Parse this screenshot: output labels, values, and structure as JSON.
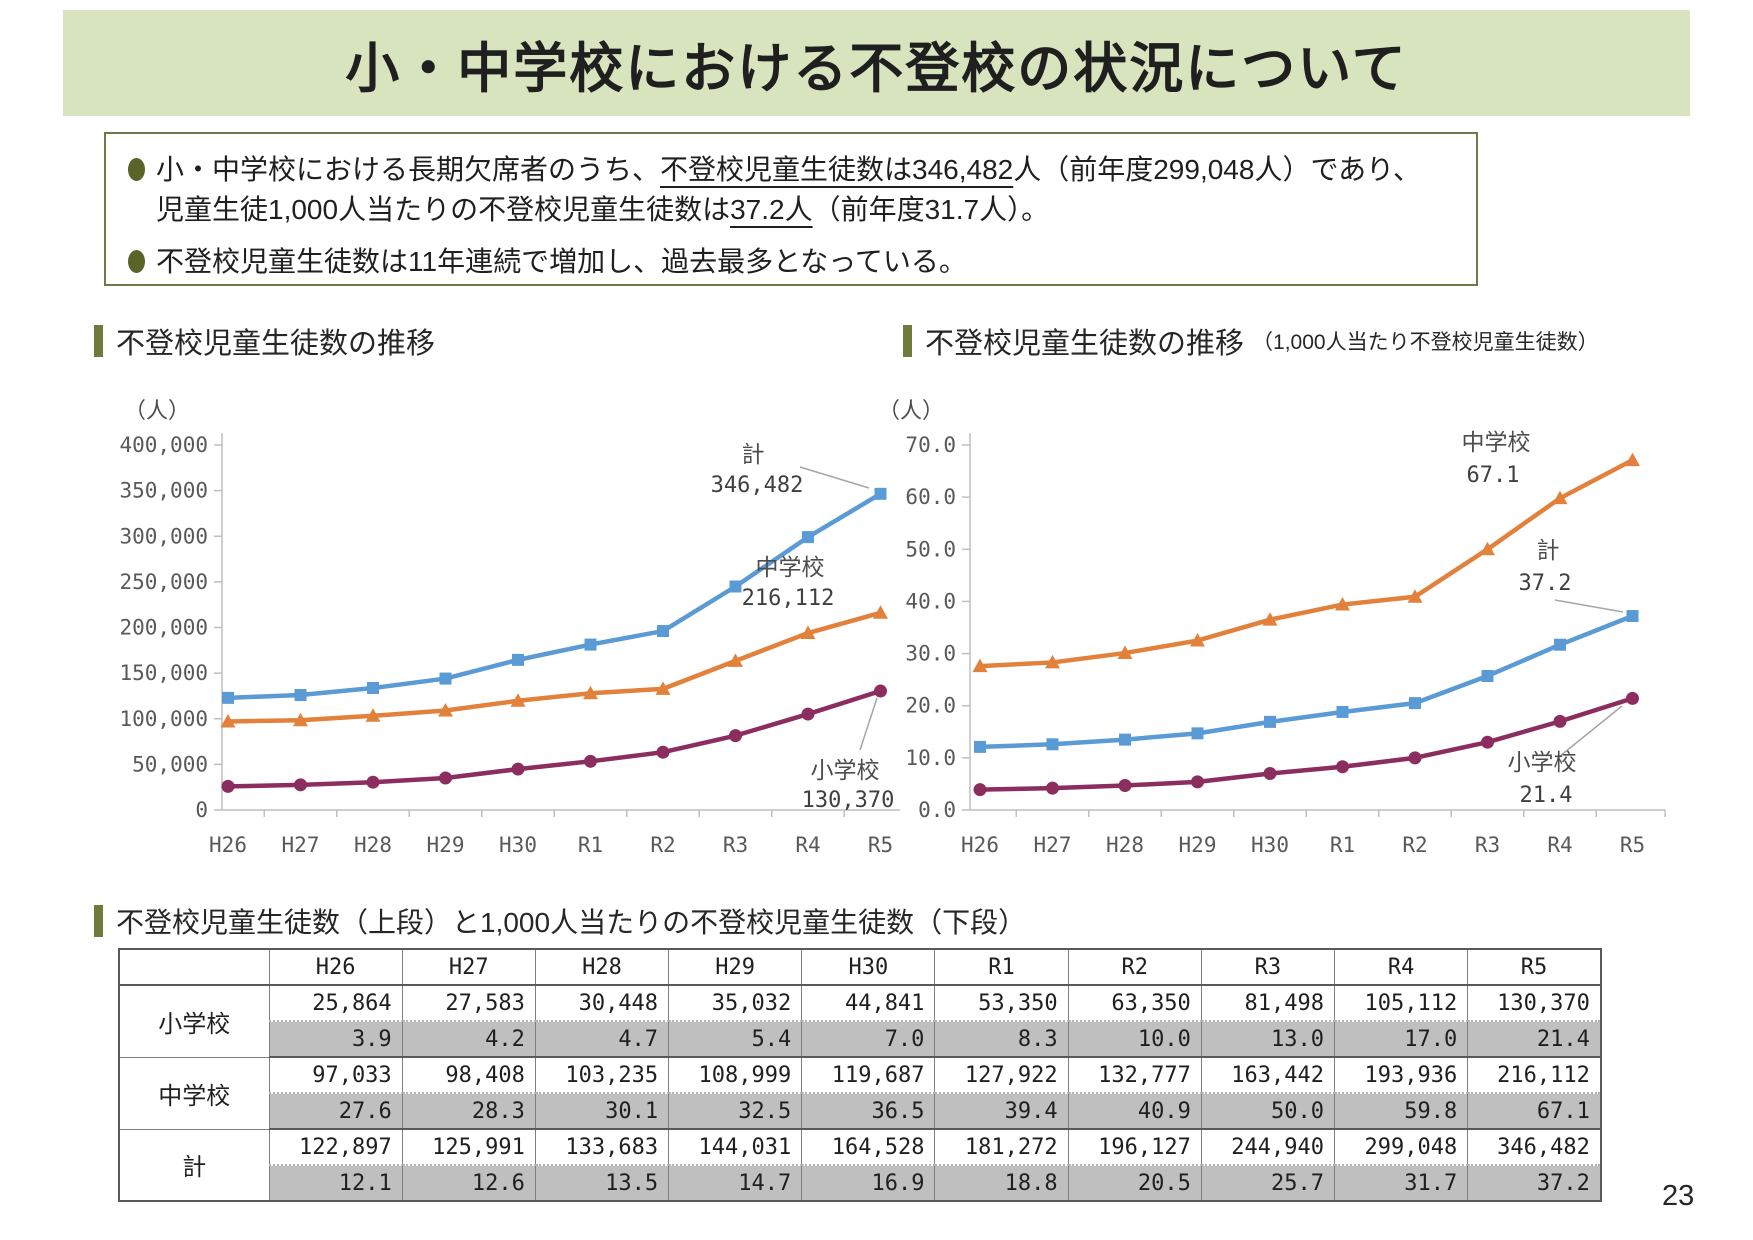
{
  "page_number": "23",
  "header": {
    "title": "小・中学校における不登校の状況について"
  },
  "summary": {
    "bullets": [
      {
        "lines": [
          [
            {
              "t": "小・中学校における長期欠席者のうち、"
            },
            {
              "t": "不登校児童生徒数は346,482",
              "u": true
            },
            {
              "t": "人（前年度299,048人）であり、"
            }
          ],
          [
            {
              "t": "児童生徒1,000人当たりの不登校児童生徒数は"
            },
            {
              "t": "37.2人",
              "u": true
            },
            {
              "t": "（前年度31.7人）。"
            }
          ]
        ]
      },
      {
        "lines": [
          [
            {
              "t": "不登校児童生徒数は11年連続で増加し、過去最多となっている。"
            }
          ]
        ]
      }
    ]
  },
  "colors": {
    "banner_green": "#D7E4BD",
    "olive_accent": "#6E7B3C",
    "table_gray_row": "#BFBFBF",
    "axis_gray": "#BFBFBF",
    "leader_gray": "#A6A6A6"
  },
  "chart_data": [
    {
      "type": "line",
      "title": "不登校児童生徒数の推移",
      "title_suffix": "",
      "unit": "（人）",
      "categories": [
        "H26",
        "H27",
        "H28",
        "H29",
        "H30",
        "R1",
        "R2",
        "R3",
        "R4",
        "R5"
      ],
      "series": [
        {
          "name": "計",
          "values": [
            122897,
            125991,
            133683,
            144031,
            164528,
            181272,
            196127,
            244940,
            299048,
            346482
          ],
          "color": "#5B9BD5",
          "marker": "square"
        },
        {
          "name": "中学校",
          "values": [
            97033,
            98408,
            103235,
            108999,
            119687,
            127922,
            132777,
            163442,
            193936,
            216112
          ],
          "color": "#E2813C",
          "marker": "triangle"
        },
        {
          "name": "小学校",
          "values": [
            25864,
            27583,
            30448,
            35032,
            44841,
            53350,
            63350,
            81498,
            105112,
            130370
          ],
          "color": "#8C2D5F",
          "marker": "circle"
        }
      ],
      "ylim": [
        0,
        400000
      ],
      "ytick_step": 50000,
      "ytick_labels": [
        "0",
        "50,000",
        "100,000",
        "150,000",
        "200,000",
        "250,000",
        "300,000",
        "350,000",
        "400,000"
      ],
      "grid": false,
      "legend_position": "annotations",
      "annotations": [
        {
          "label": "計",
          "value": "346,482"
        },
        {
          "label": "中学校",
          "value": "216,112"
        },
        {
          "label": "小学校",
          "value": "130,370"
        }
      ]
    },
    {
      "type": "line",
      "title": "不登校児童生徒数の推移",
      "title_suffix": "（1,000人当たり不登校児童生徒数）",
      "unit": "（人）",
      "categories": [
        "H26",
        "H27",
        "H28",
        "H29",
        "H30",
        "R1",
        "R2",
        "R3",
        "R4",
        "R5"
      ],
      "series": [
        {
          "name": "中学校",
          "values": [
            27.6,
            28.3,
            30.1,
            32.5,
            36.5,
            39.4,
            40.9,
            50.0,
            59.8,
            67.1
          ],
          "color": "#E2813C",
          "marker": "triangle"
        },
        {
          "name": "計",
          "values": [
            12.1,
            12.6,
            13.5,
            14.7,
            16.9,
            18.8,
            20.5,
            25.7,
            31.7,
            37.2
          ],
          "color": "#5B9BD5",
          "marker": "square"
        },
        {
          "name": "小学校",
          "values": [
            3.9,
            4.2,
            4.7,
            5.4,
            7.0,
            8.3,
            10.0,
            13.0,
            17.0,
            21.4
          ],
          "color": "#8C2D5F",
          "marker": "circle"
        }
      ],
      "ylim": [
        0,
        70
      ],
      "ytick_step": 10,
      "ytick_labels": [
        "0.0",
        "10.0",
        "20.0",
        "30.0",
        "40.0",
        "50.0",
        "60.0",
        "70.0"
      ],
      "grid": false,
      "legend_position": "annotations",
      "annotations": [
        {
          "label": "中学校",
          "value": "67.1"
        },
        {
          "label": "計",
          "value": "37.2"
        },
        {
          "label": "小学校",
          "value": "21.4"
        }
      ]
    }
  ],
  "table": {
    "section_title": "不登校児童生徒数（上段）と1,000人当たりの不登校児童生徒数（下段）",
    "columns": [
      "H26",
      "H27",
      "H28",
      "H29",
      "H30",
      "R1",
      "R2",
      "R3",
      "R4",
      "R5"
    ],
    "rows": [
      {
        "label": "小学校",
        "counts": [
          "25,864",
          "27,583",
          "30,448",
          "35,032",
          "44,841",
          "53,350",
          "63,350",
          "81,498",
          "105,112",
          "130,370"
        ],
        "rates": [
          "3.9",
          "4.2",
          "4.7",
          "5.4",
          "7.0",
          "8.3",
          "10.0",
          "13.0",
          "17.0",
          "21.4"
        ]
      },
      {
        "label": "中学校",
        "counts": [
          "97,033",
          "98,408",
          "103,235",
          "108,999",
          "119,687",
          "127,922",
          "132,777",
          "163,442",
          "193,936",
          "216,112"
        ],
        "rates": [
          "27.6",
          "28.3",
          "30.1",
          "32.5",
          "36.5",
          "39.4",
          "40.9",
          "50.0",
          "59.8",
          "67.1"
        ]
      },
      {
        "label": "計",
        "counts": [
          "122,897",
          "125,991",
          "133,683",
          "144,031",
          "164,528",
          "181,272",
          "196,127",
          "244,940",
          "299,048",
          "346,482"
        ],
        "rates": [
          "12.1",
          "12.6",
          "13.5",
          "14.7",
          "16.9",
          "18.8",
          "20.5",
          "25.7",
          "31.7",
          "37.2"
        ]
      }
    ]
  }
}
